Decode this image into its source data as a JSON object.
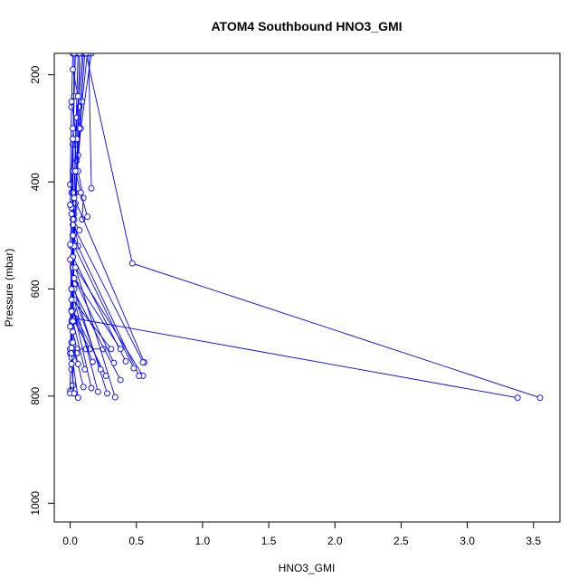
{
  "chart_data": {
    "type": "line",
    "title": "ATOM4 Southbound HNO3_GMI",
    "xlabel": "HNO3_GMI",
    "ylabel": "Pressure (mbar)",
    "xlim": [
      -0.12,
      3.7
    ],
    "ylim": [
      1035,
      160
    ],
    "y_reversed": true,
    "x_ticks": [
      0.0,
      0.5,
      1.0,
      1.5,
      2.0,
      2.5,
      3.0,
      3.5
    ],
    "x_tick_labels": [
      "0.0",
      "0.5",
      "1.0",
      "1.5",
      "2.0",
      "2.5",
      "3.0",
      "3.5"
    ],
    "y_ticks": [
      200,
      400,
      600,
      800,
      1000
    ],
    "y_tick_labels": [
      "200",
      "400",
      "600",
      "800",
      "1000"
    ],
    "grid": false,
    "marker": "open-circle",
    "color": "#0000ff",
    "series": [
      {
        "x": [
          0.1,
          0.07,
          0.05,
          0.03,
          0.02,
          0.01,
          0.0
        ],
        "y": [
          160,
          260,
          360,
          460,
          560,
          660,
          790
        ]
      },
      {
        "x": [
          0.16,
          0.08,
          0.04,
          0.02,
          0.0
        ],
        "y": [
          160,
          300,
          420,
          540,
          720
        ]
      },
      {
        "x": [
          0.06,
          0.04,
          0.02,
          0.01,
          0.0
        ],
        "y": [
          160,
          330,
          500,
          640,
          795
        ]
      },
      {
        "x": [
          0.13,
          0.09,
          0.06,
          0.03,
          0.01
        ],
        "y": [
          160,
          250,
          350,
          450,
          750
        ]
      },
      {
        "x": [
          0.09,
          0.05,
          0.03,
          0.02
        ],
        "y": [
          160,
          280,
          420,
          780
        ]
      },
      {
        "x": [
          0.04,
          0.03,
          0.02,
          0.01
        ],
        "y": [
          160,
          240,
          330,
          420
        ]
      },
      {
        "x": [
          0.11,
          0.07,
          0.04,
          0.02
        ],
        "y": [
          160,
          300,
          440,
          560
        ]
      },
      {
        "x": [
          0.02,
          0.01,
          0.0
        ],
        "y": [
          160,
          260,
          405
        ]
      },
      {
        "x": [
          0.03,
          0.02,
          0.01,
          0.0
        ],
        "y": [
          160,
          420,
          520,
          670
        ]
      },
      {
        "x": [
          0.07,
          0.05,
          0.03,
          0.02
        ],
        "y": [
          160,
          380,
          520,
          640
        ]
      },
      {
        "x": [
          0.14,
          0.16
        ],
        "y": [
          160,
          412
        ]
      },
      {
        "x": [
          0.12,
          0.47,
          3.55
        ],
        "y": [
          160,
          552,
          803
        ]
      },
      {
        "x": [
          0.02,
          0.06,
          0.1,
          0.09
        ],
        "y": [
          300,
          380,
          430,
          470
        ]
      },
      {
        "x": [
          0.02,
          0.03,
          0.06
        ],
        "y": [
          420,
          470,
          520
        ]
      },
      {
        "x": [
          0.02,
          0.01
        ],
        "y": [
          380,
          448
        ]
      },
      {
        "x": [
          0.01,
          0.02,
          0.04
        ],
        "y": [
          520,
          560,
          590
        ]
      },
      {
        "x": [
          0.04,
          3.38
        ],
        "y": [
          655,
          803
        ]
      },
      {
        "x": [
          0.03,
          0.15,
          0.25
        ],
        "y": [
          660,
          712,
          712
        ]
      },
      {
        "x": [
          0.02,
          0.05,
          0.12
        ],
        "y": [
          680,
          712,
          712
        ]
      },
      {
        "x": [
          0.0
        ],
        "y": [
          712
        ]
      },
      {
        "x": [
          0.01
        ],
        "y": [
          728
        ]
      },
      {
        "x": [
          0.01,
          0.02,
          0.05
        ],
        "y": [
          700,
          712,
          720
        ]
      },
      {
        "x": [
          0.03,
          0.56
        ],
        "y": [
          430,
          737
        ]
      },
      {
        "x": [
          0.02,
          0.55
        ],
        "y": [
          480,
          737
        ]
      },
      {
        "x": [
          0.04,
          0.55
        ],
        "y": [
          560,
          762
        ]
      },
      {
        "x": [
          0.02,
          0.52
        ],
        "y": [
          500,
          762
        ]
      },
      {
        "x": [
          0.03,
          0.48
        ],
        "y": [
          520,
          748
        ]
      },
      {
        "x": [
          0.02,
          0.42
        ],
        "y": [
          540,
          735
        ]
      },
      {
        "x": [
          0.03,
          0.38
        ],
        "y": [
          580,
          712
        ]
      },
      {
        "x": [
          0.02,
          0.38
        ],
        "y": [
          600,
          770
        ]
      },
      {
        "x": [
          0.03,
          0.33
        ],
        "y": [
          580,
          738
        ]
      },
      {
        "x": [
          0.02,
          0.31
        ],
        "y": [
          620,
          712
        ]
      },
      {
        "x": [
          0.04,
          0.34
        ],
        "y": [
          560,
          802
        ]
      },
      {
        "x": [
          0.03,
          0.28
        ],
        "y": [
          600,
          795
        ]
      },
      {
        "x": [
          0.02,
          0.27
        ],
        "y": [
          640,
          762
        ]
      },
      {
        "x": [
          0.01,
          0.23
        ],
        "y": [
          600,
          750
        ]
      },
      {
        "x": [
          0.03,
          0.21
        ],
        "y": [
          620,
          792
        ]
      },
      {
        "x": [
          0.02,
          0.17
        ],
        "y": [
          640,
          736
        ]
      },
      {
        "x": [
          0.01,
          0.16
        ],
        "y": [
          620,
          785
        ]
      },
      {
        "x": [
          0.02,
          0.11
        ],
        "y": [
          660,
          750
        ]
      },
      {
        "x": [
          0.02,
          0.1
        ],
        "y": [
          700,
          783
        ]
      },
      {
        "x": [
          0.01,
          0.06
        ],
        "y": [
          720,
          803
        ]
      },
      {
        "x": [
          0.01,
          0.03
        ],
        "y": [
          740,
          795
        ]
      },
      {
        "x": [
          0.01,
          0.06
        ],
        "y": [
          710,
          740
        ]
      },
      {
        "x": [
          0.04,
          0.08,
          0.13
        ],
        "y": [
          380,
          420,
          465
        ]
      },
      {
        "x": [
          0.02,
          0.07
        ],
        "y": [
          470,
          490
        ]
      },
      {
        "x": [
          0.01,
          0.0
        ],
        "y": [
          600,
          545
        ]
      },
      {
        "x": [
          0.01
        ],
        "y": [
          642
        ]
      },
      {
        "x": [
          0.02,
          0.06
        ],
        "y": [
          190,
          240
        ]
      },
      {
        "x": [
          0.01,
          0.05
        ],
        "y": [
          250,
          320
        ]
      },
      {
        "x": [
          0.02,
          0.0
        ],
        "y": [
          320,
          443
        ]
      },
      {
        "x": [
          0.01,
          0.0
        ],
        "y": [
          460,
          517
        ]
      }
    ]
  }
}
